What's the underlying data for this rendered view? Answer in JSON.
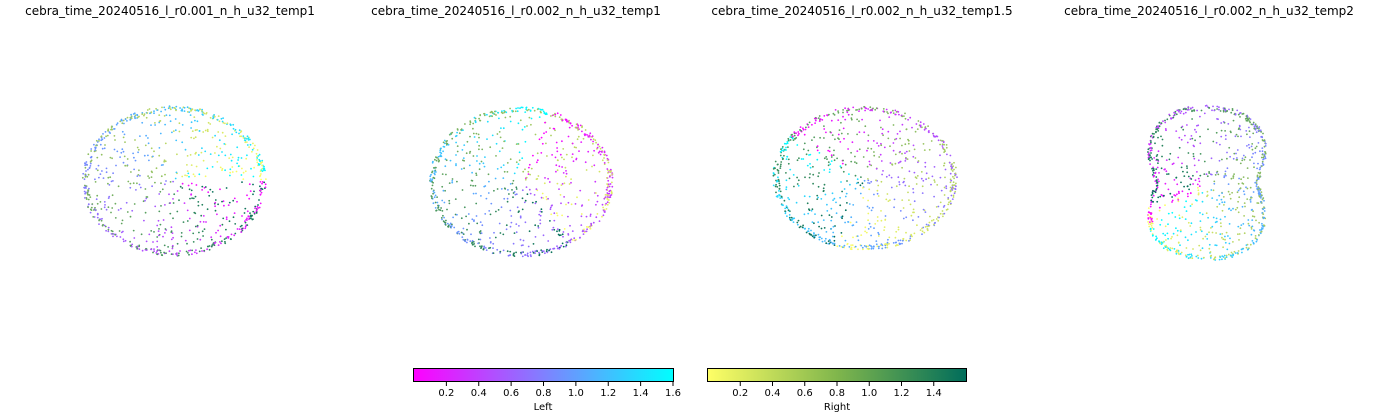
{
  "chart_data": [
    {
      "type": "scatter",
      "title": "cebra_time_20240516_l_r0.001_n_h_u32_temp1"
    },
    {
      "type": "scatter",
      "title": "cebra_time_20240516_l_r0.002_n_h_u32_temp1"
    },
    {
      "type": "scatter",
      "title": "cebra_time_20240516_l_r0.002_n_h_u32_temp1.5"
    },
    {
      "type": "scatter",
      "title": "cebra_time_20240516_l_r0.002_n_h_u32_temp2"
    }
  ],
  "colorbars": [
    {
      "label": "Left",
      "range": [
        0,
        1.6
      ],
      "ticks": [
        "0.2",
        "0.4",
        "0.6",
        "0.8",
        "1.0",
        "1.2",
        "1.4",
        "1.6"
      ],
      "tick_values": [
        0.2,
        0.4,
        0.6,
        0.8,
        1.0,
        1.2,
        1.4,
        1.6
      ],
      "colors": [
        "#ff00ff",
        "#00ffff"
      ]
    },
    {
      "label": "Right",
      "range": [
        0,
        1.6
      ],
      "ticks": [
        "0.2",
        "0.4",
        "0.6",
        "0.8",
        "1.0",
        "1.2",
        "1.4"
      ],
      "tick_values": [
        0.2,
        0.4,
        0.6,
        0.8,
        1.0,
        1.2,
        1.4
      ],
      "colors": [
        "#ffff66",
        "#006d5b"
      ]
    }
  ]
}
